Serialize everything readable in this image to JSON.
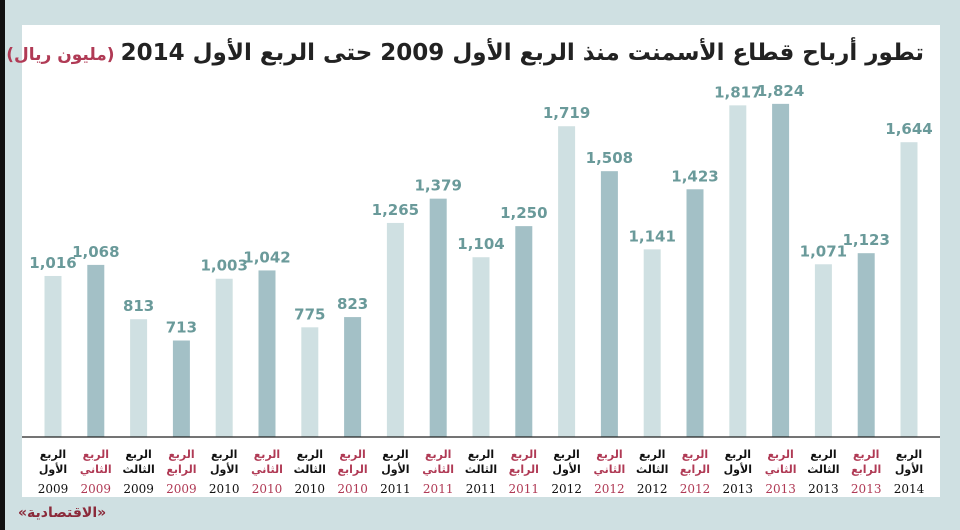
{
  "title": "تطور أرباح قطاع الأسمنت منذ الربع الأول 2009 حتى الربع الأول 2014",
  "unit": "(مليون ريال)",
  "source": "«الاقتصادية»",
  "colors": {
    "light_bar": "#cfe0e2",
    "dark_bar": "#a3c0c6",
    "value_label": "#6a9a9a",
    "red_label": "#b03a55",
    "black_label": "#111111",
    "axis": "#222222"
  },
  "chart_data": {
    "type": "bar",
    "ylim": [
      260,
      1900
    ],
    "grid": false,
    "categories": [
      {
        "line1": "الربع",
        "line2": "الأول",
        "year": "2009"
      },
      {
        "line1": "الربع",
        "line2": "الثاني",
        "year": "2009"
      },
      {
        "line1": "الربع",
        "line2": "الثالث",
        "year": "2009"
      },
      {
        "line1": "الربع",
        "line2": "الرابع",
        "year": "2009"
      },
      {
        "line1": "الربع",
        "line2": "الأول",
        "year": "2010"
      },
      {
        "line1": "الربع",
        "line2": "الثاني",
        "year": "2010"
      },
      {
        "line1": "الربع",
        "line2": "الثالث",
        "year": "2010"
      },
      {
        "line1": "الربع",
        "line2": "الرابع",
        "year": "2010"
      },
      {
        "line1": "الربع",
        "line2": "الأول",
        "year": "2011"
      },
      {
        "line1": "الربع",
        "line2": "الثاني",
        "year": "2011"
      },
      {
        "line1": "الربع",
        "line2": "الثالث",
        "year": "2011"
      },
      {
        "line1": "الربع",
        "line2": "الرابع",
        "year": "2011"
      },
      {
        "line1": "الربع",
        "line2": "الأول",
        "year": "2012"
      },
      {
        "line1": "الربع",
        "line2": "الثاني",
        "year": "2012"
      },
      {
        "line1": "الربع",
        "line2": "الثالث",
        "year": "2012"
      },
      {
        "line1": "الربع",
        "line2": "الرابع",
        "year": "2012"
      },
      {
        "line1": "الربع",
        "line2": "الأول",
        "year": "2013"
      },
      {
        "line1": "الربع",
        "line2": "الثاني",
        "year": "2013"
      },
      {
        "line1": "الربع",
        "line2": "الثالث",
        "year": "2013"
      },
      {
        "line1": "الربع",
        "line2": "الرابع",
        "year": "2013"
      },
      {
        "line1": "الربع",
        "line2": "الأول",
        "year": "2014"
      }
    ],
    "values": [
      1016,
      1068,
      813,
      713,
      1003,
      1042,
      775,
      823,
      1265,
      1379,
      1104,
      1250,
      1719,
      1508,
      1141,
      1423,
      1817,
      1824,
      1071,
      1123,
      1644
    ],
    "value_labels": [
      "1,016",
      "1,068",
      "813",
      "713",
      "1,003",
      "1,042",
      "775",
      "823",
      "1,265",
      "1,379",
      "1,104",
      "1,250",
      "1,719",
      "1,508",
      "1,141",
      "1,423",
      "1,817",
      "1,824",
      "1,071",
      "1,123",
      "1,644"
    ]
  }
}
